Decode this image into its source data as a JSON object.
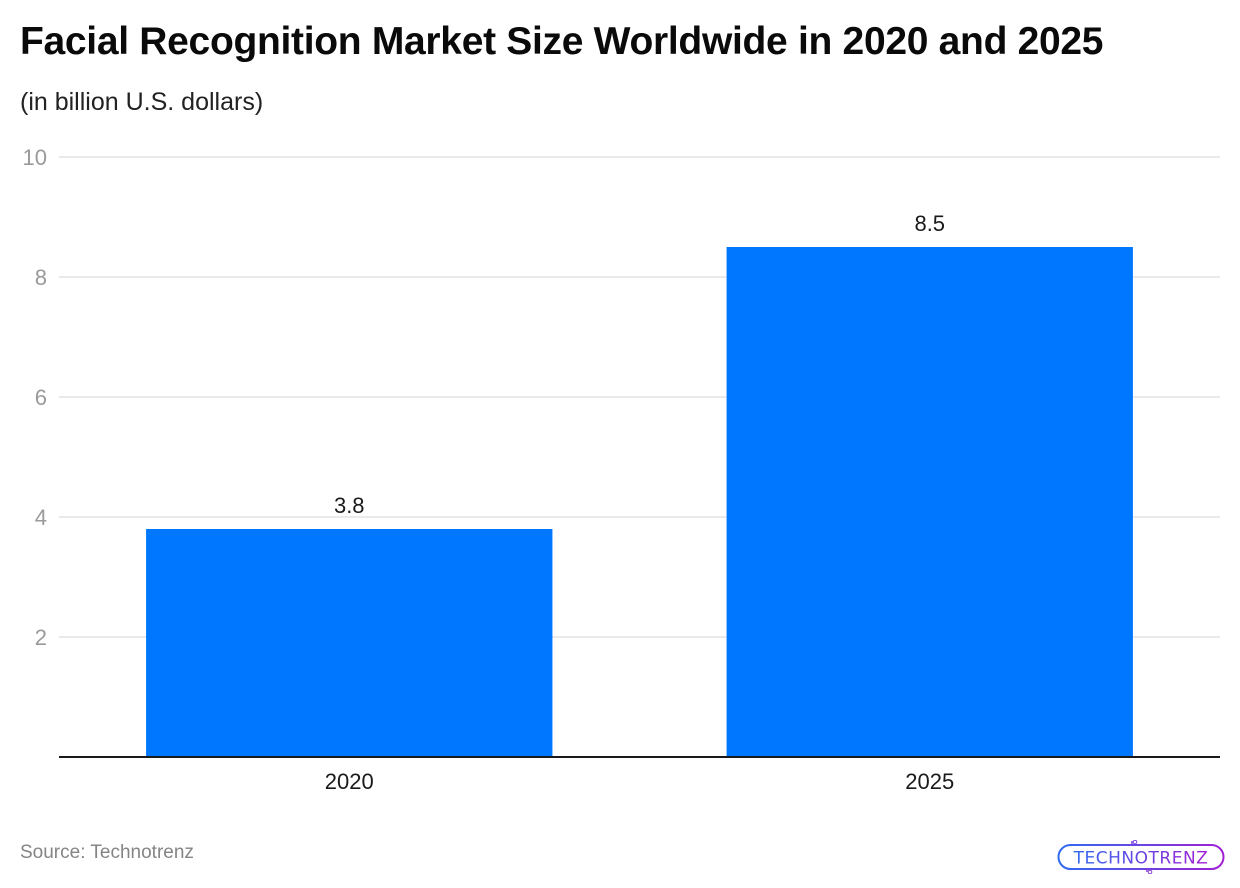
{
  "chart_data": {
    "type": "bar",
    "title": "Facial Recognition Market Size Worldwide in 2020 and 2025",
    "subtitle": "(in billion U.S. dollars)",
    "categories": [
      "2020",
      "2025"
    ],
    "values": [
      3.8,
      8.5
    ],
    "data_labels": [
      "3.8",
      "8.5"
    ],
    "xlabel": "",
    "ylabel": "",
    "ylim": [
      0,
      10
    ],
    "yticks": [
      2,
      4,
      6,
      8,
      10
    ],
    "ytick_labels": [
      "2",
      "4",
      "6",
      "8",
      "10"
    ],
    "grid": true,
    "legend": "none",
    "bar_color": "#0077ff"
  },
  "footer": {
    "source": "Source: Technotrenz",
    "logo_text": "TECHNOTRENZ"
  },
  "colors": {
    "bar": "#0077ff",
    "grid": "#e3e3e3",
    "axis": "#1a1a1a",
    "tick_label": "#9a9a9a",
    "logo_start": "#2f6bf0",
    "logo_end": "#a21fd6"
  }
}
